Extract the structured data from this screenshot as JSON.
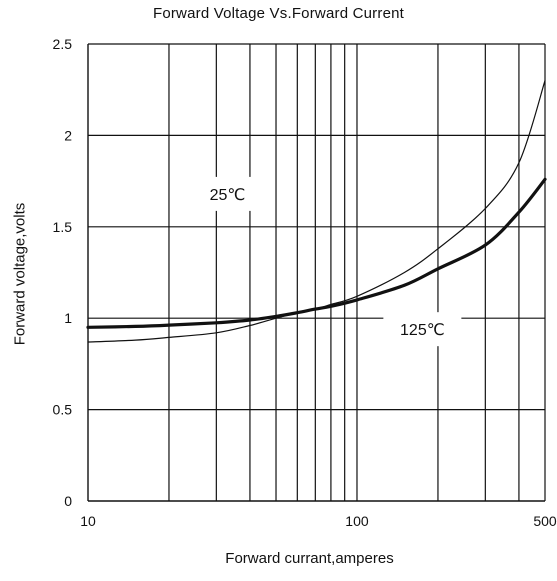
{
  "chart_data": {
    "type": "line",
    "title": "Forward  Voltage Vs.Forward Current",
    "xlabel": "Forward  currant,amperes",
    "ylabel": "Forward  voltage,volts",
    "x_scale": "log",
    "xlim": [
      10,
      500
    ],
    "ylim": [
      0,
      2.5
    ],
    "x_tick_labels": [
      {
        "value": 10,
        "label": "10"
      },
      {
        "value": 100,
        "label": "100"
      },
      {
        "value": 500,
        "label": "500"
      }
    ],
    "y_tick_labels": [
      {
        "value": 0,
        "label": "0"
      },
      {
        "value": 0.5,
        "label": "0.5"
      },
      {
        "value": 1,
        "label": "1"
      },
      {
        "value": 1.5,
        "label": "1.5"
      },
      {
        "value": 2,
        "label": "2"
      },
      {
        "value": 2.5,
        "label": "2.5"
      }
    ],
    "x_gridlines": [
      20,
      30,
      40,
      50,
      60,
      70,
      80,
      90,
      100,
      200,
      300,
      400,
      500
    ],
    "y_gridlines": [
      0.5,
      1,
      1.5,
      2,
      2.5
    ],
    "grid": true,
    "legend": "none",
    "series": [
      {
        "label": "25℃",
        "line_weight": "thin",
        "color": "#111111",
        "points": [
          [
            10,
            0.87
          ],
          [
            15,
            0.88
          ],
          [
            20,
            0.895
          ],
          [
            30,
            0.92
          ],
          [
            40,
            0.96
          ],
          [
            50,
            1.0
          ],
          [
            60,
            1.03
          ],
          [
            70,
            1.05
          ],
          [
            80,
            1.075
          ],
          [
            100,
            1.12
          ],
          [
            150,
            1.25
          ],
          [
            200,
            1.38
          ],
          [
            300,
            1.6
          ],
          [
            400,
            1.85
          ],
          [
            500,
            2.3
          ]
        ]
      },
      {
        "label": "125℃",
        "line_weight": "thick",
        "color": "#111111",
        "points": [
          [
            10,
            0.95
          ],
          [
            15,
            0.955
          ],
          [
            20,
            0.962
          ],
          [
            30,
            0.975
          ],
          [
            40,
            0.99
          ],
          [
            50,
            1.01
          ],
          [
            60,
            1.03
          ],
          [
            70,
            1.05
          ],
          [
            80,
            1.065
          ],
          [
            100,
            1.1
          ],
          [
            150,
            1.18
          ],
          [
            200,
            1.27
          ],
          [
            300,
            1.4
          ],
          [
            400,
            1.58
          ],
          [
            500,
            1.76
          ]
        ]
      }
    ]
  }
}
